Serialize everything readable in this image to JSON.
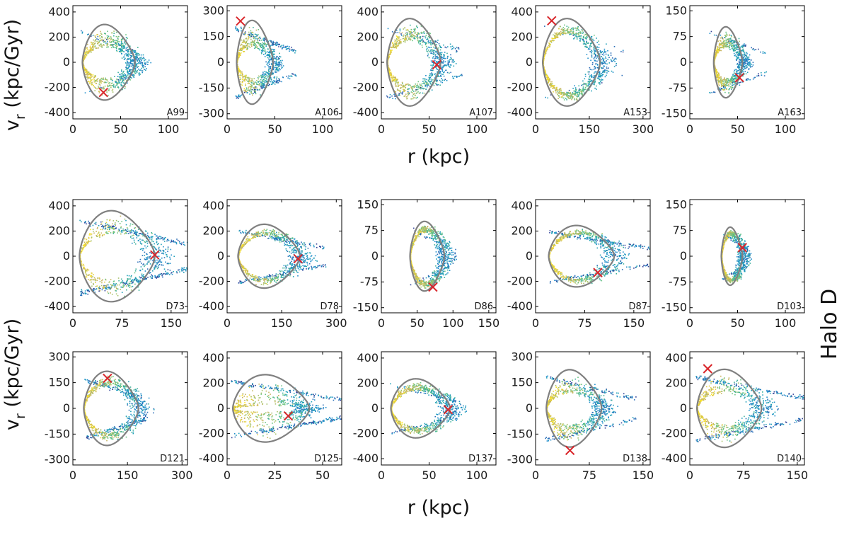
{
  "figure": {
    "x_axis_label": "r (kpc)",
    "y_axis_label_v": "v",
    "y_axis_label_sub": "r",
    "y_axis_label_units": " (kpc/Gyr)",
    "halo_label": "Halo D"
  },
  "colors": {
    "orbit": "#808080",
    "marker": "#d9262b",
    "frame": "#000000",
    "palette": [
      "#fde725",
      "#e4cf3f",
      "#c8b560",
      "#a7c26a",
      "#6cc482",
      "#3eb09a",
      "#21a0b8",
      "#1f8ecb",
      "#2c6fb8",
      "#34459a"
    ]
  },
  "chart_data": [
    {
      "type": "scatter",
      "label": "A99",
      "xlim": [
        0,
        120
      ],
      "ylim": [
        -450,
        450
      ],
      "xticks": [
        0,
        50,
        100
      ],
      "yticks": [
        -400,
        -200,
        0,
        200,
        400
      ],
      "ytick_labels": [
        "-400",
        "-200",
        "0",
        "200",
        "400"
      ],
      "orbit": {
        "rp": 10,
        "ra": 65,
        "vmax": 320
      },
      "marker": {
        "r": 32,
        "vr": -240
      },
      "spread": {
        "r_min": 8,
        "r_max": 68,
        "band": 0.55,
        "tail": 0.05,
        "bias": 0.6
      }
    },
    {
      "type": "scatter",
      "label": "A106",
      "xlim": [
        0,
        120
      ],
      "ylim": [
        -330,
        330
      ],
      "xticks": [
        0,
        50,
        100
      ],
      "yticks": [
        -300,
        -150,
        0,
        150,
        300
      ],
      "ytick_labels": [
        "-300",
        "-150",
        "0",
        "150",
        "300"
      ],
      "orbit": {
        "rp": 10,
        "ra": 48,
        "vmax": 260
      },
      "marker": {
        "r": 14,
        "vr": 240
      },
      "spread": {
        "r_min": 8,
        "r_max": 72,
        "band": 0.6,
        "tail": 0.25,
        "bias": 0.5
      }
    },
    {
      "type": "scatter",
      "label": "A107",
      "xlim": [
        0,
        120
      ],
      "ylim": [
        -450,
        450
      ],
      "xticks": [
        0,
        50,
        100
      ],
      "yticks": [
        -400,
        -200,
        0,
        200,
        400
      ],
      "ytick_labels": [
        "-400",
        "-200",
        "0",
        "200",
        "400"
      ],
      "orbit": {
        "rp": 6,
        "ra": 62,
        "vmax": 370
      },
      "marker": {
        "r": 58,
        "vr": -20
      },
      "spread": {
        "r_min": 5,
        "r_max": 85,
        "band": 0.45,
        "tail": 0.15,
        "bias": 0.55
      }
    },
    {
      "type": "scatter",
      "label": "A153",
      "xlim": [
        0,
        320
      ],
      "ylim": [
        -450,
        450
      ],
      "xticks": [
        0,
        150,
        300
      ],
      "yticks": [
        -400,
        -200,
        0,
        200,
        400
      ],
      "ytick_labels": [
        "-400",
        "-200",
        "0",
        "200",
        "400"
      ],
      "orbit": {
        "rp": 20,
        "ra": 180,
        "vmax": 370
      },
      "marker": {
        "r": 45,
        "vr": 330
      },
      "spread": {
        "r_min": 20,
        "r_max": 250,
        "band": 0.25,
        "tail": 0.05,
        "bias": 0.4
      }
    },
    {
      "type": "scatter",
      "label": "A163",
      "xlim": [
        0,
        120
      ],
      "ylim": [
        -165,
        165
      ],
      "xticks": [
        0,
        50,
        100
      ],
      "yticks": [
        -150,
        -75,
        0,
        75,
        150
      ],
      "ytick_labels": [
        "-150",
        "-75",
        "0",
        "75",
        "150"
      ],
      "orbit": {
        "rp": 25,
        "ra": 55,
        "vmax": 110
      },
      "marker": {
        "r": 52,
        "vr": -45
      },
      "spread": {
        "r_min": 20,
        "r_max": 80,
        "band": 0.5,
        "tail": 0.1,
        "bias": 0.5
      }
    },
    {
      "type": "scatter",
      "label": "D73",
      "xlim": [
        0,
        175
      ],
      "ylim": [
        -450,
        450
      ],
      "xticks": [
        0,
        75,
        150
      ],
      "yticks": [
        -400,
        -200,
        0,
        200,
        400
      ],
      "ytick_labels": [
        "-400",
        "-200",
        "0",
        "200",
        "400"
      ],
      "orbit": {
        "rp": 10,
        "ra": 125,
        "vmax": 385
      },
      "marker": {
        "r": 125,
        "vr": 10
      },
      "spread": {
        "r_min": 10,
        "r_max": 175,
        "band": 0.45,
        "tail": 0.35,
        "bias": 0.6
      }
    },
    {
      "type": "scatter",
      "label": "D78",
      "xlim": [
        0,
        315
      ],
      "ylim": [
        -450,
        450
      ],
      "xticks": [
        0,
        150,
        300
      ],
      "yticks": [
        -400,
        -200,
        0,
        200,
        400
      ],
      "ytick_labels": [
        "-400",
        "-200",
        "0",
        "200",
        "400"
      ],
      "orbit": {
        "rp": 30,
        "ra": 200,
        "vmax": 270
      },
      "marker": {
        "r": 195,
        "vr": -20
      },
      "spread": {
        "r_min": 30,
        "r_max": 270,
        "band": 0.25,
        "tail": 0.2,
        "bias": 0.5
      }
    },
    {
      "type": "scatter",
      "label": "D86",
      "xlim": [
        0,
        160
      ],
      "ylim": [
        -165,
        165
      ],
      "xticks": [
        0,
        50,
        100,
        150
      ],
      "yticks": [
        -150,
        -75,
        0,
        75,
        150
      ],
      "ytick_labels": [
        "-150",
        "-75",
        "0",
        "75",
        "150"
      ],
      "orbit": {
        "rp": 40,
        "ra": 88,
        "vmax": 108
      },
      "marker": {
        "r": 72,
        "vr": -90
      },
      "spread": {
        "r_min": 40,
        "r_max": 95,
        "band": 0.2,
        "tail": 0.05,
        "bias": 0.5
      }
    },
    {
      "type": "scatter",
      "label": "D87",
      "xlim": [
        0,
        175
      ],
      "ylim": [
        -450,
        450
      ],
      "xticks": [
        0,
        75,
        150
      ],
      "yticks": [
        -400,
        -200,
        0,
        200,
        400
      ],
      "ytick_labels": [
        "-400",
        "-200",
        "0",
        "200",
        "400"
      ],
      "orbit": {
        "rp": 20,
        "ra": 120,
        "vmax": 260
      },
      "marker": {
        "r": 95,
        "vr": -130
      },
      "spread": {
        "r_min": 20,
        "r_max": 175,
        "band": 0.2,
        "tail": 0.25,
        "bias": 0.5
      }
    },
    {
      "type": "scatter",
      "label": "D103",
      "xlim": [
        0,
        120
      ],
      "ylim": [
        -165,
        165
      ],
      "xticks": [
        0,
        50,
        100
      ],
      "yticks": [
        -150,
        -75,
        0,
        75,
        150
      ],
      "ytick_labels": [
        "-150",
        "-75",
        "0",
        "75",
        "150"
      ],
      "orbit": {
        "rp": 33,
        "ra": 55,
        "vmax": 90
      },
      "marker": {
        "r": 55,
        "vr": 25
      },
      "spread": {
        "r_min": 33,
        "r_max": 60,
        "band": 0.15,
        "tail": 0.05,
        "bias": 0.5
      }
    },
    {
      "type": "scatter",
      "label": "D121",
      "xlim": [
        0,
        315
      ],
      "ylim": [
        -330,
        330
      ],
      "xticks": [
        0,
        150,
        300
      ],
      "yticks": [
        -300,
        -150,
        0,
        150,
        300
      ],
      "ytick_labels": [
        "-300",
        "-150",
        "0",
        "150",
        "300"
      ],
      "orbit": {
        "rp": 30,
        "ra": 180,
        "vmax": 230
      },
      "marker": {
        "r": 95,
        "vr": 175
      },
      "spread": {
        "r_min": 30,
        "r_max": 200,
        "band": 0.3,
        "tail": 0.2,
        "bias": 0.5
      }
    },
    {
      "type": "scatter",
      "label": "D125",
      "xlim": [
        0,
        60
      ],
      "ylim": [
        -450,
        450
      ],
      "xticks": [
        0,
        25,
        50
      ],
      "yticks": [
        -400,
        -200,
        0,
        200,
        400
      ],
      "ytick_labels": [
        "-400",
        "-200",
        "0",
        "200",
        "400"
      ],
      "orbit": {
        "rp": 3,
        "ra": 43,
        "vmax": 285
      },
      "marker": {
        "r": 32,
        "vr": -60
      },
      "spread": {
        "r_min": 2,
        "r_max": 60,
        "band": 0.9,
        "tail": 0.3,
        "bias": 0.4
      }
    },
    {
      "type": "scatter",
      "label": "D137",
      "xlim": [
        0,
        120
      ],
      "ylim": [
        -450,
        450
      ],
      "xticks": [
        0,
        50,
        100
      ],
      "yticks": [
        -400,
        -200,
        0,
        200,
        400
      ],
      "ytick_labels": [
        "-400",
        "-200",
        "0",
        "200",
        "400"
      ],
      "orbit": {
        "rp": 10,
        "ra": 72,
        "vmax": 250
      },
      "marker": {
        "r": 70,
        "vr": -10
      },
      "spread": {
        "r_min": 8,
        "r_max": 80,
        "band": 0.3,
        "tail": 0.1,
        "bias": 0.5
      }
    },
    {
      "type": "scatter",
      "label": "D138",
      "xlim": [
        0,
        160
      ],
      "ylim": [
        -330,
        330
      ],
      "xticks": [
        0,
        75,
        150
      ],
      "yticks": [
        -300,
        -150,
        0,
        150,
        300
      ],
      "ytick_labels": [
        "-300",
        "-150",
        "0",
        "150",
        "300"
      ],
      "orbit": {
        "rp": 15,
        "ra": 92,
        "vmax": 240
      },
      "marker": {
        "r": 48,
        "vr": -245
      },
      "spread": {
        "r_min": 12,
        "r_max": 140,
        "band": 0.55,
        "tail": 0.2,
        "bias": 0.5
      }
    },
    {
      "type": "scatter",
      "label": "D140",
      "xlim": [
        0,
        160
      ],
      "ylim": [
        -450,
        450
      ],
      "xticks": [
        0,
        75,
        150
      ],
      "yticks": [
        -400,
        -200,
        0,
        200,
        400
      ],
      "ytick_labels": [
        "-400",
        "-200",
        "0",
        "200",
        "400"
      ],
      "orbit": {
        "rp": 10,
        "ra": 100,
        "vmax": 330
      },
      "marker": {
        "r": 25,
        "vr": 315
      },
      "spread": {
        "r_min": 8,
        "r_max": 160,
        "band": 0.55,
        "tail": 0.3,
        "bias": 0.5
      }
    }
  ]
}
